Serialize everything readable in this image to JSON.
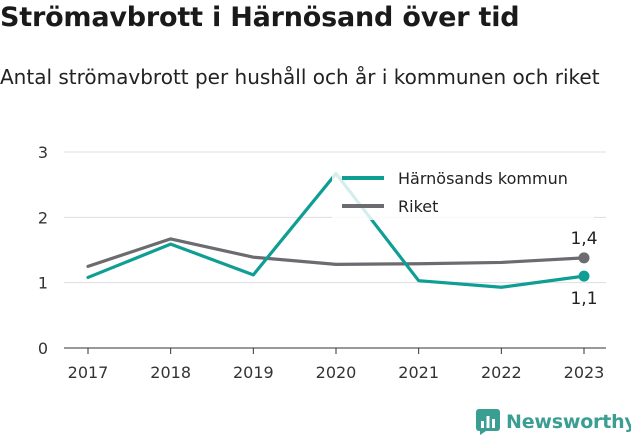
{
  "title": "Strömavbrott i Härnösand över tid",
  "subtitle": "Antal strömavbrott per hushåll och år i kommunen och riket",
  "logo_text": "Newsworthy",
  "colors": {
    "kommun": "#0f9e94",
    "riket": "#6b6b70",
    "grid": "#dddddd",
    "axis": "#333333",
    "logo": "#3a9e93"
  },
  "chart_data": {
    "type": "line",
    "x": [
      "2017",
      "2018",
      "2019",
      "2020",
      "2021",
      "2022",
      "2023"
    ],
    "ylim": [
      0,
      3
    ],
    "yticks": [
      "0",
      "1",
      "2",
      "3"
    ],
    "grid": true,
    "legend_position": "top-right",
    "series": [
      {
        "name": "Härnösands kommun",
        "key": "kommun",
        "values": [
          1.08,
          1.59,
          1.12,
          2.67,
          1.03,
          0.93,
          1.1
        ],
        "end_label": "1,1"
      },
      {
        "name": "Riket",
        "key": "riket",
        "values": [
          1.25,
          1.67,
          1.39,
          1.28,
          1.29,
          1.31,
          1.38
        ],
        "end_label": "1,4"
      }
    ]
  }
}
